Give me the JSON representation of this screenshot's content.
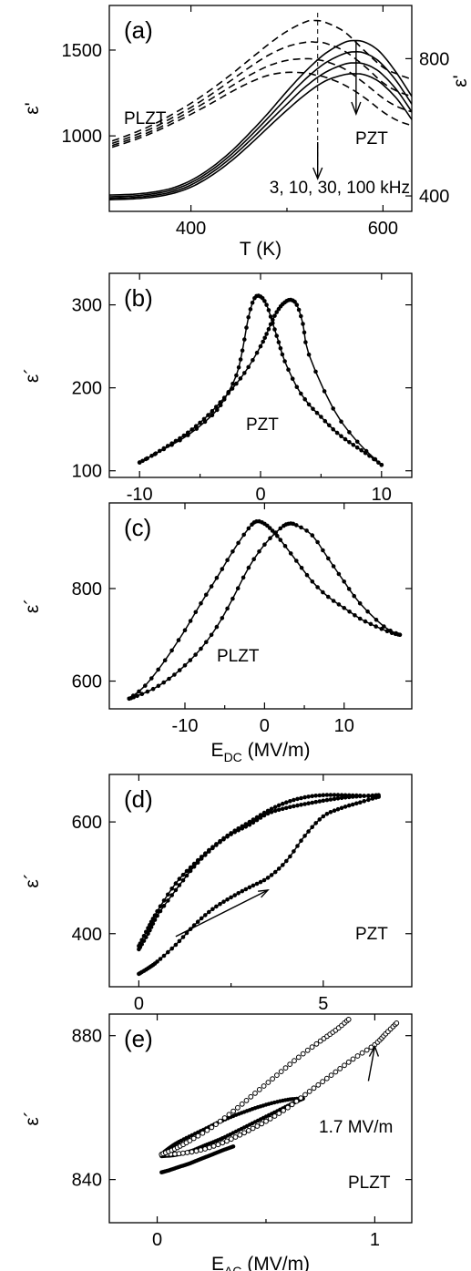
{
  "chart_data": [
    {
      "panel": "(a)",
      "type": "line",
      "xlabel": "T (K)",
      "ylabel": "ε'",
      "y2label": "ε'",
      "xlim": [
        315,
        630
      ],
      "xticks": [
        400,
        600
      ],
      "ylim": [
        560,
        1760
      ],
      "yticks": [
        1000,
        1500
      ],
      "y2lim": [
        355,
        955
      ],
      "y2ticks": [
        400,
        800
      ],
      "annotations": [
        "PLZT",
        "PZT",
        "3, 10, 30, 100 kHz"
      ],
      "series": [
        {
          "axis": "left",
          "style": "solid",
          "x": [
            315,
            340,
            360,
            380,
            400,
            420,
            440,
            460,
            480,
            500,
            520,
            540,
            560,
            572,
            580,
            590,
            600,
            615,
            630
          ],
          "y": [
            655,
            660,
            672,
            695,
            740,
            810,
            900,
            1010,
            1130,
            1260,
            1380,
            1480,
            1545,
            1555,
            1548,
            1520,
            1470,
            1360,
            1230
          ]
        },
        {
          "axis": "left",
          "style": "solid",
          "x": [
            315,
            340,
            360,
            380,
            400,
            420,
            440,
            460,
            480,
            500,
            520,
            540,
            560,
            572,
            580,
            590,
            600,
            615,
            630
          ],
          "y": [
            645,
            650,
            662,
            684,
            727,
            795,
            882,
            988,
            1103,
            1222,
            1335,
            1425,
            1480,
            1490,
            1484,
            1458,
            1412,
            1312,
            1185
          ]
        },
        {
          "axis": "left",
          "style": "solid",
          "x": [
            315,
            340,
            360,
            380,
            400,
            420,
            440,
            460,
            480,
            500,
            520,
            540,
            560,
            572,
            580,
            590,
            600,
            615,
            630
          ],
          "y": [
            636,
            641,
            652,
            673,
            714,
            780,
            864,
            965,
            1075,
            1185,
            1290,
            1370,
            1418,
            1425,
            1420,
            1397,
            1355,
            1263,
            1140
          ]
        },
        {
          "axis": "left",
          "style": "solid",
          "x": [
            315,
            340,
            360,
            380,
            400,
            420,
            440,
            460,
            480,
            500,
            520,
            540,
            560,
            572,
            580,
            590,
            600,
            615,
            630
          ],
          "y": [
            628,
            633,
            643,
            663,
            701,
            764,
            845,
            942,
            1047,
            1150,
            1245,
            1320,
            1357,
            1362,
            1357,
            1336,
            1298,
            1213,
            1095
          ]
        },
        {
          "axis": "right",
          "style": "dashed",
          "x": [
            318,
            340,
            360,
            380,
            400,
            420,
            440,
            460,
            480,
            500,
            520,
            530,
            540,
            560,
            580,
            600,
            615,
            630
          ],
          "y": [
            560,
            583,
            607,
            637,
            670,
            708,
            750,
            795,
            840,
            880,
            908,
            911,
            906,
            878,
            825,
            775,
            755,
            740
          ]
        },
        {
          "axis": "right",
          "style": "dashed",
          "x": [
            318,
            340,
            360,
            380,
            400,
            420,
            440,
            460,
            480,
            500,
            520,
            530,
            540,
            560,
            580,
            600,
            615,
            630
          ],
          "y": [
            553,
            575,
            598,
            627,
            658,
            694,
            733,
            773,
            809,
            835,
            848,
            848,
            845,
            822,
            780,
            730,
            705,
            690
          ]
        },
        {
          "axis": "right",
          "style": "dashed",
          "x": [
            318,
            340,
            360,
            380,
            400,
            420,
            440,
            460,
            480,
            500,
            520,
            530,
            540,
            560,
            580,
            600,
            615,
            630
          ],
          "y": [
            547,
            568,
            590,
            618,
            648,
            681,
            716,
            750,
            778,
            795,
            800,
            797,
            792,
            770,
            730,
            685,
            660,
            645
          ]
        },
        {
          "axis": "right",
          "style": "dashed",
          "x": [
            318,
            340,
            360,
            380,
            400,
            420,
            440,
            460,
            480,
            500,
            520,
            530,
            540,
            560,
            580,
            600,
            615,
            630
          ],
          "y": [
            542,
            562,
            584,
            610,
            638,
            668,
            700,
            729,
            751,
            760,
            758,
            752,
            746,
            723,
            688,
            645,
            620,
            605
          ]
        }
      ]
    },
    {
      "panel": "(b)",
      "type": "line",
      "xlabel": "",
      "ylabel": "ε´",
      "xlim": [
        -12.5,
        12.5
      ],
      "xticks": [
        -10,
        0,
        10
      ],
      "ylim": [
        92,
        338
      ],
      "yticks": [
        100,
        200,
        300
      ],
      "annotations": [
        "PZT"
      ],
      "series": [
        {
          "x": [
            -10,
            -8,
            -6,
            -4,
            -3,
            -2,
            -1.5,
            -1,
            -0.5,
            0,
            0.5,
            1,
            1.5,
            2,
            3,
            4,
            5,
            6,
            7,
            8,
            9,
            10
          ],
          "y": [
            110,
            126,
            143,
            167,
            186,
            215,
            245,
            285,
            308,
            310,
            300,
            278,
            255,
            232,
            201,
            180,
            165,
            150,
            138,
            128,
            118,
            107
          ]
        },
        {
          "x": [
            10,
            8,
            6,
            4,
            3.5,
            3,
            2.5,
            2,
            1.5,
            1,
            0.5,
            0,
            -1,
            -2,
            -3,
            -4,
            -5,
            -6,
            -7,
            -8,
            -9,
            -10
          ],
          "y": [
            107,
            135,
            175,
            240,
            277,
            300,
            306,
            303,
            295,
            282,
            265,
            250,
            225,
            205,
            188,
            172,
            158,
            146,
            136,
            127,
            118,
            110
          ]
        }
      ]
    },
    {
      "panel": "(c)",
      "type": "line",
      "xlabel": "E_DC (MV/m)",
      "ylabel": "ε´",
      "xlim": [
        -19.5,
        18.5
      ],
      "xticks": [
        -10,
        0,
        10
      ],
      "ylim": [
        540,
        985
      ],
      "yticks": [
        600,
        800
      ],
      "annotations": [
        "PLZT"
      ],
      "series": [
        {
          "x": [
            -17,
            -15,
            -12.5,
            -10,
            -8,
            -6,
            -4,
            -2,
            -1,
            0,
            1,
            2,
            4,
            6,
            8,
            10,
            12,
            14,
            16,
            17
          ],
          "y": [
            562,
            590,
            645,
            710,
            768,
            823,
            880,
            930,
            945,
            940,
            925,
            905,
            860,
            815,
            782,
            758,
            735,
            718,
            704,
            700
          ]
        },
        {
          "x": [
            17,
            15,
            12,
            10,
            8,
            6,
            4,
            3,
            2,
            0,
            -2,
            -4,
            -6,
            -8,
            -10,
            -12,
            -14,
            -16,
            -17
          ],
          "y": [
            700,
            718,
            768,
            815,
            865,
            915,
            937,
            940,
            930,
            895,
            845,
            778,
            717,
            670,
            634,
            605,
            583,
            568,
            562
          ]
        }
      ]
    },
    {
      "panel": "(d)",
      "type": "line",
      "xlabel": "",
      "ylabel": "ε´",
      "xlim": [
        -0.8,
        7.4
      ],
      "xticks": [
        0,
        5
      ],
      "ylim": [
        305,
        685
      ],
      "yticks": [
        400,
        600
      ],
      "annotations": [
        "PZT"
      ],
      "series": [
        {
          "x": [
            0,
            0.25,
            0.5,
            1,
            1.5,
            2,
            2.5,
            3,
            3.5,
            4,
            4.5,
            5,
            5.5,
            6,
            6.5
          ],
          "y": [
            328,
            338,
            350,
            380,
            415,
            444,
            465,
            483,
            500,
            530,
            575,
            610,
            625,
            635,
            645
          ]
        },
        {
          "x": [
            6.5,
            6,
            5.5,
            5,
            4.5,
            4,
            3.5,
            3,
            2.5,
            2,
            1.5,
            1,
            0.5,
            0.25,
            0
          ],
          "y": [
            645,
            647,
            648,
            648,
            644,
            635,
            620,
            600,
            580,
            555,
            525,
            490,
            440,
            410,
            378
          ]
        },
        {
          "x": [
            0,
            0.25,
            0.5,
            1,
            1.5,
            2,
            2.5,
            3,
            3.5,
            4,
            4.5,
            5,
            5.5,
            6,
            6.5
          ],
          "y": [
            372,
            400,
            432,
            478,
            520,
            553,
            578,
            595,
            615,
            625,
            632,
            638,
            643,
            646,
            648
          ]
        }
      ]
    },
    {
      "panel": "(e)",
      "type": "scatter",
      "xlabel": "E_AC (MV/m)",
      "ylabel": "ε´",
      "xlim": [
        -0.22,
        1.17
      ],
      "xticks": [
        0,
        1
      ],
      "ylim": [
        828,
        886
      ],
      "yticks": [
        840,
        880
      ],
      "annotations": [
        "1.7 MV/m",
        "PLZT"
      ],
      "series": [
        {
          "marker": "filled",
          "x": [
            0.02,
            0.05,
            0.1,
            0.15,
            0.2,
            0.25,
            0.3,
            0.35
          ],
          "y": [
            842,
            842.5,
            843.5,
            844.5,
            845.7,
            846.9,
            848.1,
            849.2
          ]
        },
        {
          "marker": "filled",
          "x": [
            0.02,
            0.08,
            0.15,
            0.22,
            0.3,
            0.4,
            0.5,
            0.6,
            0.67
          ],
          "y": [
            846.5,
            846.8,
            847.8,
            849.5,
            851.5,
            854.5,
            857.5,
            860.5,
            862.5
          ]
        },
        {
          "marker": "filled",
          "x": [
            0.67,
            0.6,
            0.5,
            0.4,
            0.3,
            0.2,
            0.1,
            0.05,
            0.02
          ],
          "y": [
            862.5,
            862.2,
            860.8,
            858.8,
            856.4,
            853.5,
            850.5,
            848.5,
            847
          ]
        },
        {
          "marker": "open",
          "x": [
            0.02,
            0.1,
            0.2,
            0.3,
            0.4,
            0.5,
            0.6,
            0.7,
            0.8,
            0.9,
            1.0,
            1.05,
            1.1
          ],
          "y": [
            847,
            847.2,
            848.2,
            850.2,
            853,
            856.2,
            860,
            864.5,
            869,
            873.5,
            877.5,
            880.5,
            883.5
          ]
        },
        {
          "marker": "open",
          "x": [
            0.02,
            0.08,
            0.15,
            0.25,
            0.35,
            0.45,
            0.55,
            0.65,
            0.75,
            0.82,
            0.88
          ],
          "y": [
            847,
            848.5,
            850.8,
            854.5,
            859,
            864,
            869,
            874,
            878.5,
            881.5,
            884.5
          ]
        }
      ]
    }
  ]
}
